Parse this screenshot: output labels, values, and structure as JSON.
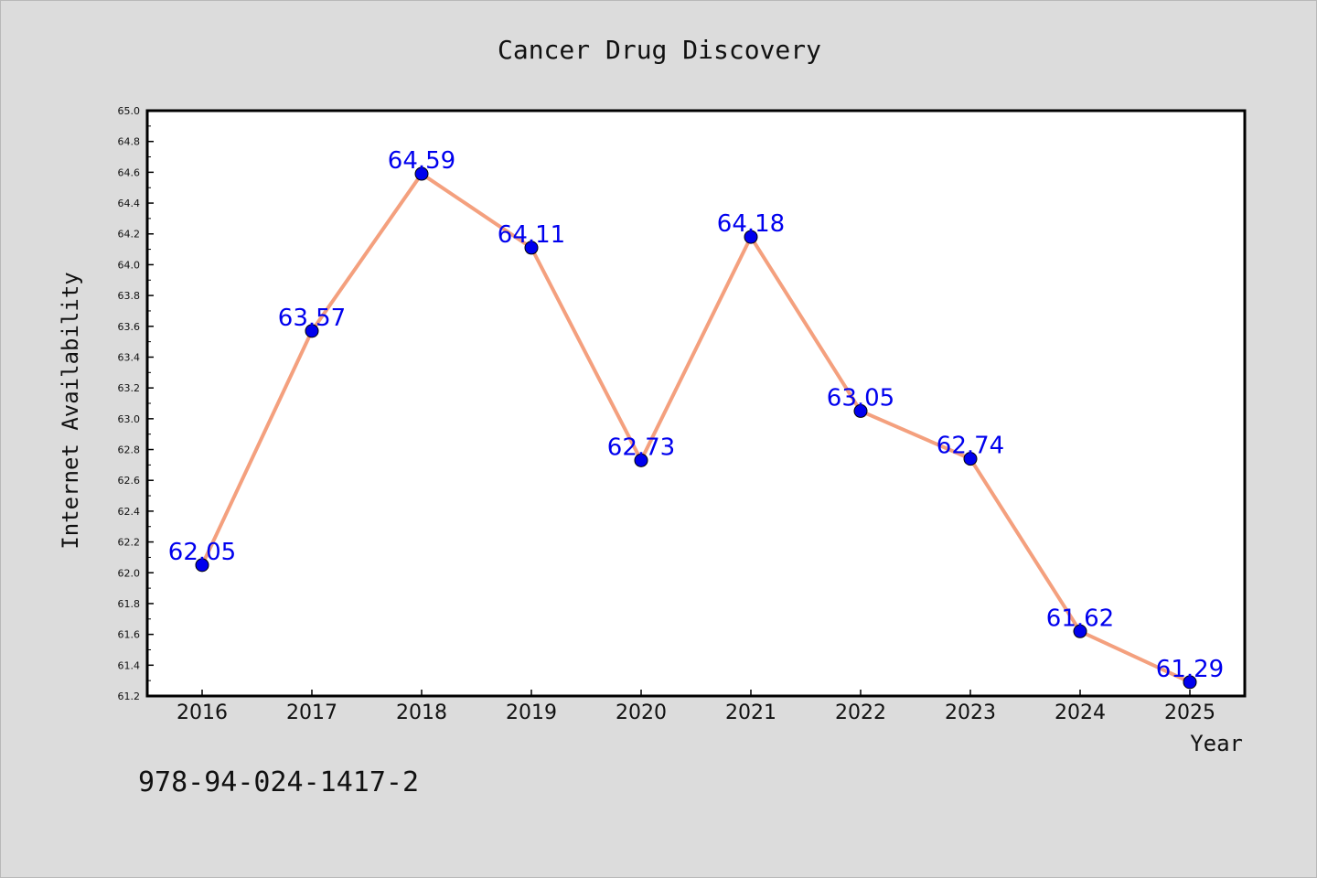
{
  "chart_data": {
    "type": "line",
    "title": "Cancer Drug Discovery",
    "xlabel": "Year",
    "ylabel": "Internet Availability",
    "categories": [
      "2016",
      "2017",
      "2018",
      "2019",
      "2020",
      "2021",
      "2022",
      "2023",
      "2024",
      "2025"
    ],
    "series": [
      {
        "values": [
          62.05,
          63.57,
          64.59,
          64.11,
          62.73,
          64.18,
          63.05,
          62.74,
          61.62,
          61.29
        ],
        "line_color": "#f4a07e",
        "marker_color": "#0000ee"
      }
    ],
    "data_labels": [
      "62.05",
      "63.57",
      "64.59",
      "64.11",
      "62.73",
      "64.18",
      "63.05",
      "62.74",
      "61.62",
      "61.29"
    ],
    "data_label_color": "#0000ee",
    "ylim": [
      61.2,
      65.0
    ],
    "yticks": [
      "61.2",
      "61.4",
      "61.6",
      "61.8",
      "62.0",
      "62.2",
      "62.4",
      "62.6",
      "62.8",
      "63.0",
      "63.2",
      "63.4",
      "63.6",
      "63.8",
      "64.0",
      "64.2",
      "64.4",
      "64.6",
      "64.8",
      "65.0"
    ],
    "grid": false,
    "annotation": "978-94-024-1417-2"
  }
}
